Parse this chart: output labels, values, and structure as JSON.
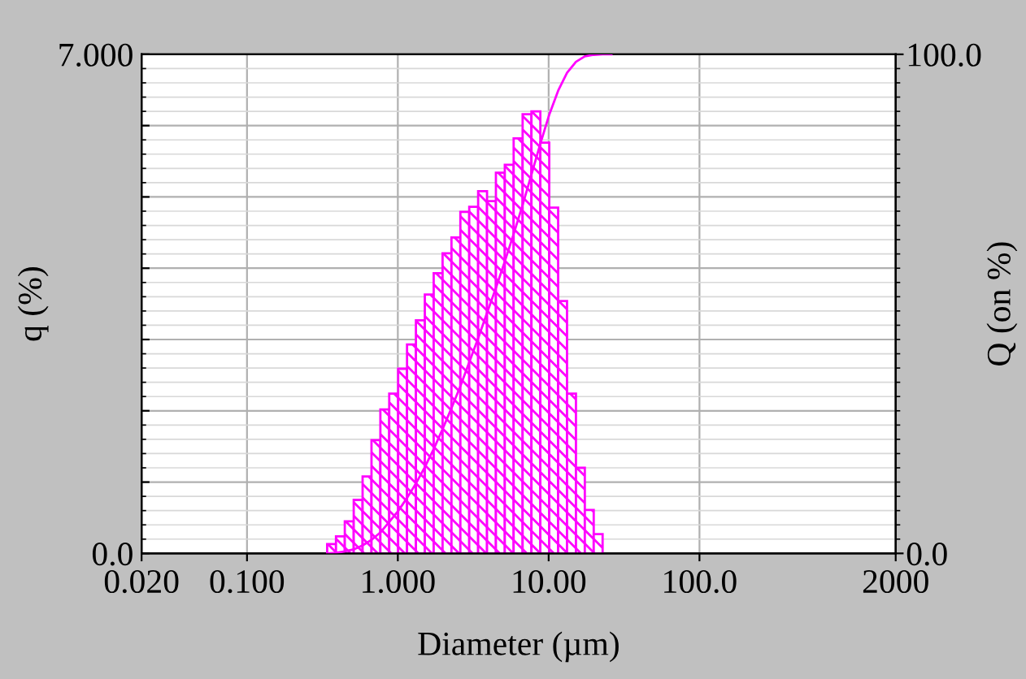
{
  "chart_data": {
    "type": "histogram",
    "xlabel": "Diameter (µm)",
    "ylabel": "q (%)",
    "y2label": "Q (on %)",
    "bins": [
      0.34,
      0.389,
      0.445,
      0.51,
      0.584,
      0.669,
      0.766,
      0.877,
      1.005,
      1.151,
      1.318,
      1.51,
      1.729,
      1.98,
      2.268,
      2.598,
      2.975,
      3.408,
      3.903,
      4.47,
      5.12,
      5.86,
      6.72,
      7.69,
      8.81,
      10.09,
      11.56,
      13.24,
      15.17,
      17.37,
      19.9,
      22.79
    ],
    "values": [
      0.13,
      0.24,
      0.45,
      0.75,
      1.08,
      1.59,
      2.02,
      2.24,
      2.59,
      2.93,
      3.27,
      3.63,
      3.93,
      4.21,
      4.43,
      4.79,
      4.86,
      5.08,
      4.94,
      5.34,
      5.45,
      5.82,
      6.16,
      6.2,
      5.76,
      4.85,
      3.54,
      2.24,
      1.2,
      0.61,
      0.27
    ],
    "color": "#ff00ff",
    "series": [
      {
        "type": "line",
        "axis": "y2",
        "color": "#ff00ff",
        "x": [
          0.34,
          0.389,
          0.445,
          0.51,
          0.584,
          0.669,
          0.766,
          0.877,
          1.005,
          1.151,
          1.318,
          1.51,
          1.729,
          1.98,
          2.268,
          2.598,
          2.975,
          3.408,
          3.903,
          4.47,
          5.12,
          5.86,
          6.72,
          7.69,
          8.81,
          10.09,
          11.56,
          13.24,
          15.17,
          17.37,
          19.9,
          22.79,
          26.1
        ],
        "values": [
          0,
          0.1,
          0.4,
          0.8,
          1.6,
          2.7,
          4.2,
          6.3,
          8.5,
          11.1,
          14.0,
          17.3,
          20.9,
          24.9,
          29.1,
          33.5,
          38.3,
          43.1,
          48.2,
          53.2,
          58.5,
          64.0,
          69.8,
          75.9,
          82.1,
          87.9,
          92.7,
          96.3,
          98.5,
          99.6,
          99.9,
          100.0,
          100.0
        ]
      }
    ],
    "log": "x",
    "xlim": [
      0.02,
      2000
    ],
    "xticks": [
      {
        "value": 0.02,
        "label": "0.020"
      },
      {
        "value": 0.1,
        "label": "0.100"
      },
      {
        "value": 1,
        "label": "1.000"
      },
      {
        "value": 10,
        "label": "10.00"
      },
      {
        "value": 100,
        "label": "100.0"
      },
      {
        "value": 2000,
        "label": "2000"
      }
    ],
    "ylim": [
      0,
      7
    ],
    "yticks": [
      {
        "value": 0,
        "label": "0.0"
      },
      {
        "value": 1,
        "label": null
      },
      {
        "value": 2,
        "label": null
      },
      {
        "value": 3,
        "label": null
      },
      {
        "value": 4,
        "label": null
      },
      {
        "value": 5,
        "label": null
      },
      {
        "value": 6,
        "label": null
      },
      {
        "value": 7,
        "label": "7.000"
      }
    ],
    "y2lim": [
      0,
      100
    ],
    "y2ticks": [
      {
        "value": 0,
        "label": "0.0"
      },
      {
        "value": 100,
        "label": "100.0"
      }
    ],
    "grid": true,
    "legend": false
  }
}
